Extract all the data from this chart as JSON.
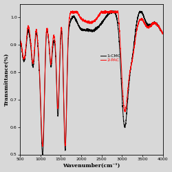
{
  "title": "",
  "xlabel": "Wavenumber(cm⁻¹)",
  "ylabel": "Transmittance(%)",
  "xlim": [
    500,
    4000
  ],
  "ylim": [
    0.5,
    1.05
  ],
  "legend": [
    "1-CMC",
    "2-PAC"
  ],
  "legend_colors": [
    "black",
    "red"
  ],
  "background_color": "#d8d8d8",
  "yticks": [
    0.5,
    0.6,
    0.7,
    0.8,
    0.9,
    1.0
  ],
  "xticks": [
    500,
    1000,
    1500,
    2000,
    2500,
    3000,
    3500,
    4000
  ]
}
